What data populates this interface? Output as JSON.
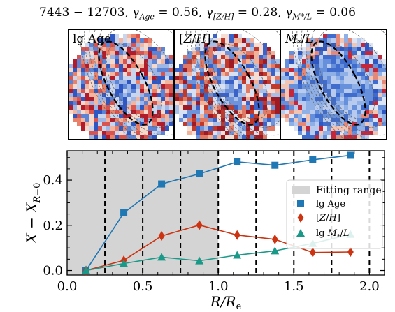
{
  "title": {
    "galaxy_id": "7443 − 12703,",
    "gamma_age": "γ<sub>Age</sub> = 0.56,",
    "gamma_zh": "γ<sub>[Z/H]</sub> = 0.28,",
    "gamma_ml": "γ<sub>M*/L</sub> = 0.06"
  },
  "panels": [
    {
      "label": "lg Age",
      "name": "map-lg-age"
    },
    {
      "label": "[Z/H]",
      "name": "map-zh"
    },
    {
      "label": "M*/L",
      "name": "map-ml"
    }
  ],
  "colors": {
    "shade": "#d4d4d4",
    "age": "#1f77b4",
    "zh": "#cc3311",
    "ml": "#1a9988"
  },
  "chart_data": {
    "type": "line",
    "xlabel": "R/Re",
    "ylabel": "X − X_{R=0}",
    "xlim": [
      0.0,
      2.1
    ],
    "ylim": [
      -0.02,
      0.53
    ],
    "xticks": [
      "0.0",
      "0.5",
      "1.0",
      "1.5",
      "2.0"
    ],
    "yticks": [
      "0.0",
      "0.2",
      "0.4"
    ],
    "fitting_range": [
      0.0,
      1.0
    ],
    "bin_edges": [
      0.25,
      0.5,
      0.75,
      1.0,
      1.25,
      1.5,
      1.75,
      2.0
    ],
    "x": [
      0.125,
      0.375,
      0.625,
      0.875,
      1.125,
      1.375,
      1.625,
      1.875
    ],
    "series": [
      {
        "name": "lg Age",
        "marker": "square",
        "values": [
          0.0,
          0.255,
          0.383,
          0.428,
          0.481,
          0.466,
          0.49,
          0.51
        ]
      },
      {
        "name": "[Z/H]",
        "marker": "diamond",
        "values": [
          0.0,
          0.045,
          0.153,
          0.201,
          0.157,
          0.138,
          0.08,
          0.082
        ]
      },
      {
        "name": "lg M*/L",
        "marker": "triangle",
        "values": [
          0.0,
          0.031,
          0.059,
          0.043,
          0.068,
          0.087,
          0.12,
          0.16
        ]
      }
    ],
    "legend": {
      "position": "right",
      "entries": [
        "Fitting range",
        "lg Age",
        "[Z/H]",
        "lg M*/L"
      ]
    }
  }
}
